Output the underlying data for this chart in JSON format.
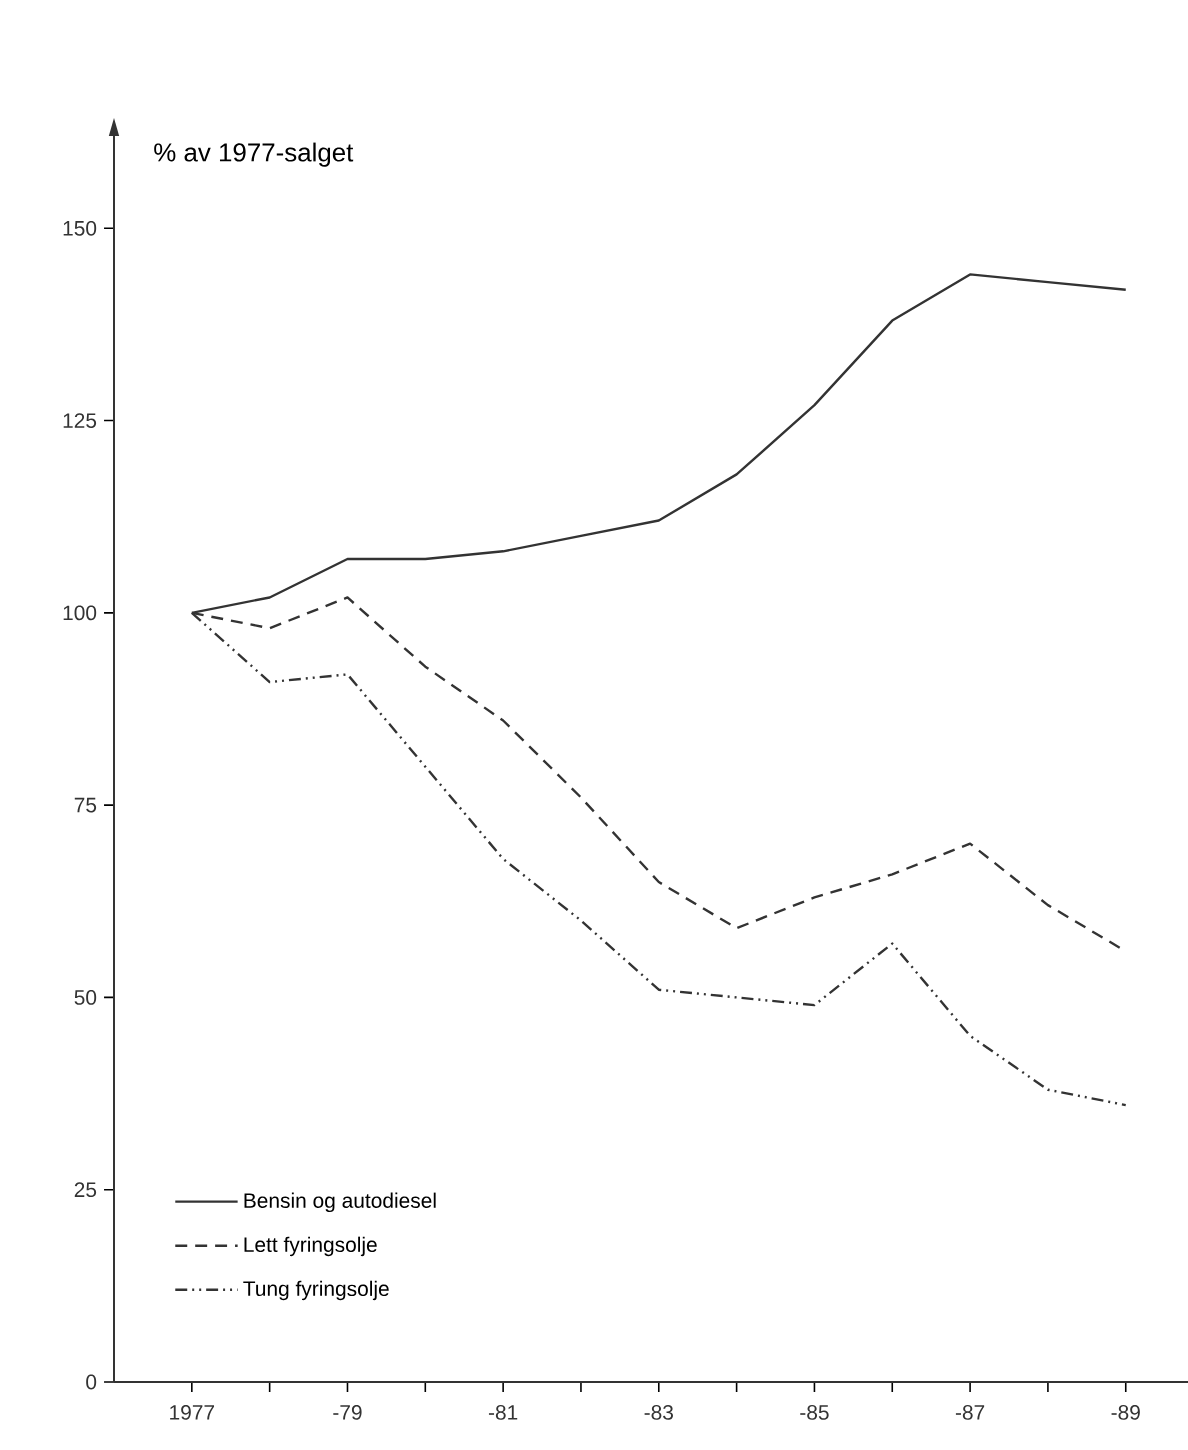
{
  "chart_data": {
    "type": "line",
    "ylabel": "% av 1977-salget",
    "categories": [
      "1977",
      null,
      "-79",
      null,
      "-81",
      null,
      "-83",
      null,
      "-85",
      null,
      "-87",
      null,
      "-89"
    ],
    "series": [
      {
        "name": "Bensin og autodiesel",
        "color": "#333333",
        "line_style": "solid",
        "values": [
          100,
          102,
          107,
          107,
          108,
          110,
          112,
          118,
          127,
          138,
          144,
          143,
          142
        ]
      },
      {
        "name": "Lett fyringsolje",
        "color": "#333333",
        "line_style": "dashed",
        "values": [
          100,
          98,
          102,
          93,
          86,
          76,
          65,
          59,
          63,
          66,
          70,
          62,
          56
        ]
      },
      {
        "name": "Tung fyringsolje",
        "color": "#333333",
        "line_style": "dashdotdotted",
        "values": [
          100,
          91,
          92,
          80,
          68,
          60,
          51,
          50,
          49,
          57,
          45,
          38,
          36
        ]
      }
    ],
    "ylim": [
      0,
      162
    ],
    "yticks": [
      0,
      25,
      50,
      75,
      100,
      125,
      150
    ],
    "grid": false,
    "legend": "bottom left",
    "marker": "none"
  }
}
